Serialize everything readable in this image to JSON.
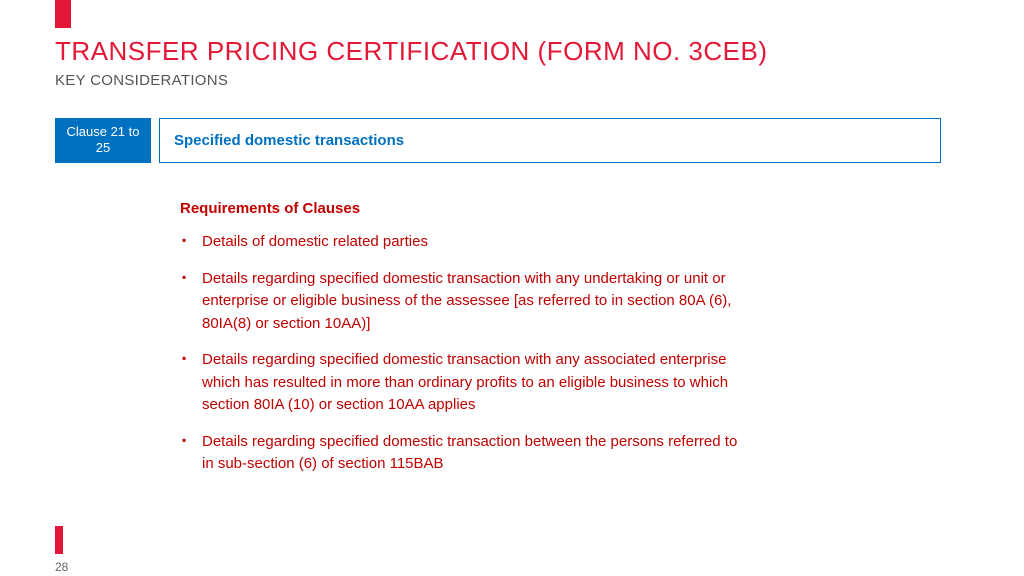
{
  "colors": {
    "accent_red": "#e31837",
    "text_red": "#c00000",
    "clause_blue": "#0070c0",
    "subtitle_gray": "#555555",
    "page_gray": "#666666",
    "background": "#ffffff"
  },
  "header": {
    "title": "TRANSFER PRICING CERTIFICATION (FORM NO. 3CEB)",
    "subtitle": "KEY CONSIDERATIONS"
  },
  "clause": {
    "badge": "Clause 21 to 25",
    "label": "Specified domestic transactions"
  },
  "requirements": {
    "heading": "Requirements of Clauses",
    "items": [
      "Details of domestic related parties",
      "Details regarding specified domestic transaction with any undertaking or unit or enterprise or eligible business of the assessee [as referred to in section 80A (6), 80IA(8) or section 10AA)]",
      "Details regarding specified domestic transaction with any associated enterprise which has resulted in more than ordinary profits to an eligible business to which section 80IA (10) or section 10AA applies",
      "Details regarding specified domestic transaction between the persons referred to in sub-section (6) of section 115BAB"
    ]
  },
  "page_number": "28"
}
